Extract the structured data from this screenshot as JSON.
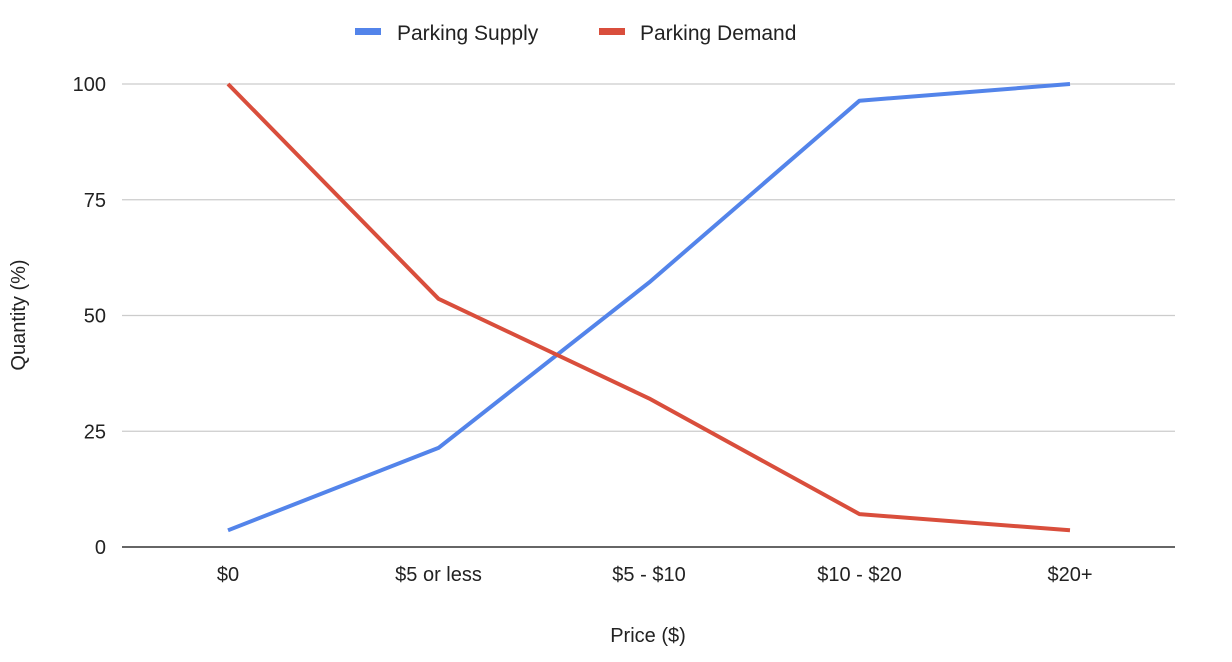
{
  "chart_data": {
    "type": "line",
    "categories": [
      "$0",
      "$5 or less",
      "$5 - $10",
      "$10 - $20",
      "$20+"
    ],
    "series": [
      {
        "name": "Parking Supply",
        "color": "#5384ea",
        "values": [
          3.6,
          21.4,
          57.1,
          96.4,
          100
        ]
      },
      {
        "name": "Parking Demand",
        "color": "#d94e3c",
        "values": [
          100,
          53.6,
          32.1,
          7.1,
          3.6
        ]
      }
    ],
    "xlabel": "Price ($)",
    "ylabel": "Quantity (%)",
    "ylim": [
      0,
      100
    ],
    "yticks": [
      "0",
      "25",
      "50",
      "75",
      "100"
    ],
    "grid": true,
    "legend_position": "top-center"
  }
}
